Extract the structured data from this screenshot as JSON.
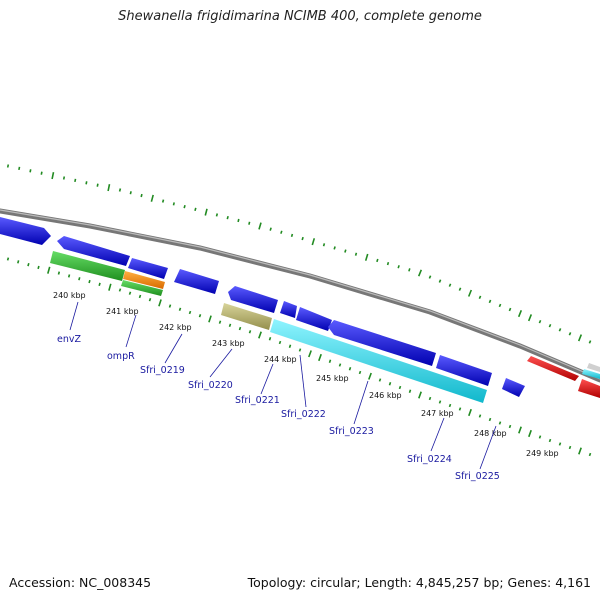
{
  "title": "Shewanella frigidimarina NCIMB 400, complete genome",
  "footer": {
    "accession": "Accession: NC_008345",
    "topology": "Topology: circular; Length: 4,845,257 bp; Genes: 4,161"
  },
  "scale_labels": [
    "240 kbp",
    "241 kbp",
    "242 kbp",
    "243 kbp",
    "244 kbp",
    "245 kbp",
    "246 kbp",
    "247 kbp",
    "248 kbp",
    "249 kbp"
  ],
  "gene_labels": [
    "envZ",
    "ompR",
    "Sfri_0219",
    "Sfri_0220",
    "Sfri_0221",
    "Sfri_0222",
    "Sfri_0223",
    "Sfri_0224",
    "Sfri_0225"
  ],
  "colors": {
    "backbone": "#8c8c8c",
    "tick": "#228b22",
    "cds_blue": "#1010e0",
    "cds_green": "#33bb33",
    "cds_orange": "#ff8c00",
    "cds_olive": "#bdb76b",
    "cds_cyan": "#22e0f0",
    "cds_red": "#ee1111",
    "label": "#1a1aa0"
  }
}
